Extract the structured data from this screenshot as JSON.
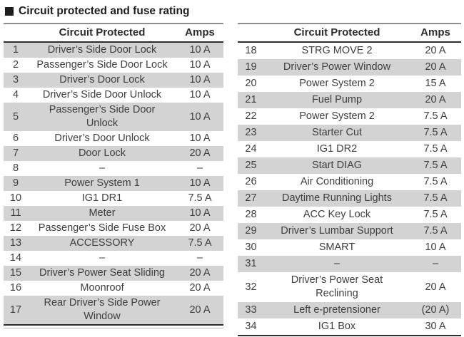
{
  "title": "Circuit protected and fuse rating",
  "tables": [
    {
      "name": "fuse-table-left",
      "headers": {
        "number": "",
        "circuit": "Circuit Protected",
        "amps": "Amps"
      },
      "shade_start": 0,
      "rows": [
        {
          "num": "1",
          "circuit": "Driver’s Side Door Lock",
          "amps": "10 A"
        },
        {
          "num": "2",
          "circuit": "Passenger’s Side Door Lock",
          "amps": "10 A"
        },
        {
          "num": "3",
          "circuit": "Driver’s Door Lock",
          "amps": "10 A"
        },
        {
          "num": "4",
          "circuit": "Driver’s Side Door Unlock",
          "amps": "10 A"
        },
        {
          "num": "5",
          "circuit": "Passenger’s Side Door\nUnlock",
          "amps": "10 A"
        },
        {
          "num": "6",
          "circuit": "Driver’s Door Unlock",
          "amps": "10 A"
        },
        {
          "num": "7",
          "circuit": "Door Lock",
          "amps": "20 A"
        },
        {
          "num": "8",
          "circuit": "–",
          "amps": "–"
        },
        {
          "num": "9",
          "circuit": "Power System 1",
          "amps": "10 A"
        },
        {
          "num": "10",
          "circuit": "IG1 DR1",
          "amps": "7.5 A"
        },
        {
          "num": "11",
          "circuit": "Meter",
          "amps": "10 A"
        },
        {
          "num": "12",
          "circuit": "Passenger’s Side Fuse Box",
          "amps": "20 A"
        },
        {
          "num": "13",
          "circuit": "ACCESSORY",
          "amps": "7.5 A"
        },
        {
          "num": "14",
          "circuit": "–",
          "amps": "–"
        },
        {
          "num": "15",
          "circuit": "Driver’s Power Seat Sliding",
          "amps": "20 A"
        },
        {
          "num": "16",
          "circuit": "Moonroof",
          "amps": "20 A"
        },
        {
          "num": "17",
          "circuit": "Rear Driver’s Side Power\nWindow",
          "amps": "20 A"
        }
      ]
    },
    {
      "name": "fuse-table-right",
      "headers": {
        "number": "",
        "circuit": "Circuit Protected",
        "amps": "Amps"
      },
      "shade_start": 1,
      "rows": [
        {
          "num": "18",
          "circuit": "STRG MOVE 2",
          "amps": "20 A"
        },
        {
          "num": "19",
          "circuit": "Driver’s Power Window",
          "amps": "20 A"
        },
        {
          "num": "20",
          "circuit": "Power System 2",
          "amps": "15 A"
        },
        {
          "num": "21",
          "circuit": "Fuel Pump",
          "amps": "20 A"
        },
        {
          "num": "22",
          "circuit": "Power System 2",
          "amps": "7.5 A"
        },
        {
          "num": "23",
          "circuit": "Starter Cut",
          "amps": "7.5 A"
        },
        {
          "num": "24",
          "circuit": "IG1 DR2",
          "amps": "7.5 A"
        },
        {
          "num": "25",
          "circuit": "Start DIAG",
          "amps": "7.5 A"
        },
        {
          "num": "26",
          "circuit": "Air Conditioning",
          "amps": "7.5 A"
        },
        {
          "num": "27",
          "circuit": "Daytime Running Lights",
          "amps": "7.5 A"
        },
        {
          "num": "28",
          "circuit": "ACC Key Lock",
          "amps": "7.5 A"
        },
        {
          "num": "29",
          "circuit": "Driver’s Lumbar Support",
          "amps": "7.5 A"
        },
        {
          "num": "30",
          "circuit": "SMART",
          "amps": "10 A"
        },
        {
          "num": "31",
          "circuit": "–",
          "amps": "–"
        },
        {
          "num": "32",
          "circuit": "Driver’s Power Seat\nReclining",
          "amps": "20 A"
        },
        {
          "num": "33",
          "circuit": "Left e-pretensioner",
          "amps": "(20 A)"
        },
        {
          "num": "34",
          "circuit": "IG1 Box",
          "amps": "30 A"
        }
      ]
    }
  ],
  "colors": {
    "shaded_row": "#d3d3d3",
    "text": "#3e3e3e",
    "rule_dark": "#2c2c2c",
    "rule_light": "#8d8d8d"
  }
}
